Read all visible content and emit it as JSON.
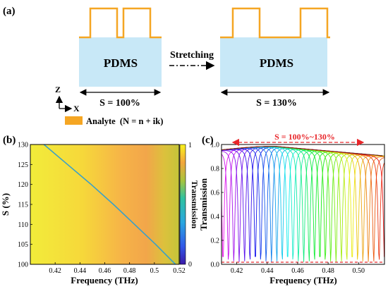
{
  "panel_a": {
    "label": "(a)",
    "pdms_left": "PDMS",
    "pdms_right": "PDMS",
    "stretch_label": "Stretching",
    "s_left": "S = 100%",
    "s_right": "S = 130%",
    "axis_z": "Z",
    "axis_x": "X",
    "legend": "Analyte  (N = n + ik)",
    "colors": {
      "substrate": "#c8e8f7",
      "analyte": "#f5a623"
    }
  },
  "panel_b": {
    "label": "(b)",
    "colorbar_label": "Transmission",
    "colorbar_ticks": [
      "1",
      "0"
    ]
  },
  "panel_c": {
    "label": "(c)",
    "annotation": "S = 100%~130%"
  },
  "chart_data": [
    {
      "type": "heatmap",
      "xlabel": "Frequency (THz)",
      "ylabel": "S (%)",
      "xlim": [
        0.4,
        0.52
      ],
      "ylim": [
        100,
        130
      ],
      "xticks": [
        "0.42",
        "0.44",
        "0.46",
        "0.48",
        "0.5",
        "0.52"
      ],
      "yticks": [
        "100",
        "105",
        "110",
        "115",
        "120",
        "125",
        "130"
      ],
      "colorbar": {
        "label": "Transmission",
        "range": [
          0,
          1
        ]
      },
      "resonance_curve": [
        {
          "x": 0.411,
          "y": 130
        },
        {
          "x": 0.43,
          "y": 125
        },
        {
          "x": 0.449,
          "y": 120
        },
        {
          "x": 0.467,
          "y": 115
        },
        {
          "x": 0.484,
          "y": 110
        },
        {
          "x": 0.501,
          "y": 105
        },
        {
          "x": 0.517,
          "y": 100
        }
      ]
    },
    {
      "type": "line",
      "xlabel": "Frequency (THz)",
      "ylabel": "Transmission",
      "xlim": [
        0.41,
        0.517
      ],
      "ylim": [
        0,
        1
      ],
      "xticks": [
        "0.42",
        "0.44",
        "0.46",
        "0.48",
        "0.50"
      ],
      "yticks": [
        "0.0",
        "0.2",
        "0.4",
        "0.6",
        "0.8",
        "1.0"
      ],
      "resonance_count": 31,
      "resonance_range": [
        0.411,
        0.517
      ],
      "envelope": {
        "peak_x": 0.445,
        "start": 0.955,
        "peak": 0.985,
        "end": 0.905
      },
      "dip_min": 0.02
    }
  ]
}
